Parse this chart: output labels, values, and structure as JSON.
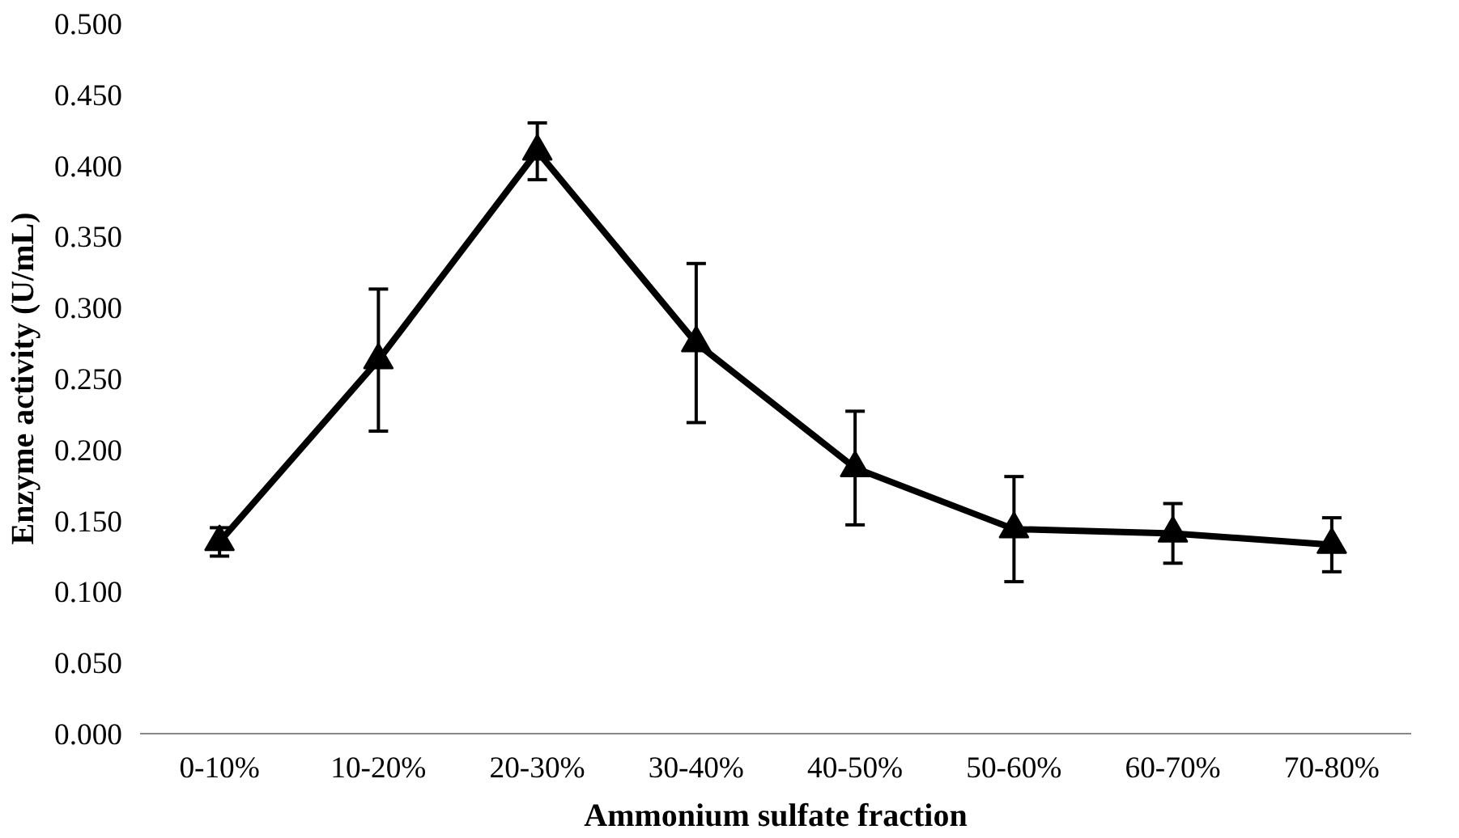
{
  "chart_data": {
    "type": "line",
    "xlabel": "Ammonium sulfate fraction",
    "ylabel": "Enzyme activity (U/mL)",
    "categories": [
      "0-10%",
      "10-20%",
      "20-30%",
      "30-40%",
      "40-50%",
      "50-60%",
      "60-70%",
      "70-80%"
    ],
    "series": [
      {
        "color": "#000000",
        "values": [
          0.135,
          0.263,
          0.41,
          0.275,
          0.187,
          0.144,
          0.141,
          0.133
        ],
        "errors": [
          0.01,
          0.05,
          0.02,
          0.056,
          0.04,
          0.037,
          0.021,
          0.019
        ]
      }
    ],
    "ylim": [
      0,
      0.5
    ],
    "yticks": [
      {
        "value": 0,
        "label": "0.000"
      },
      {
        "value": 0.05,
        "label": "0.050"
      },
      {
        "value": 0.1,
        "label": "0.100"
      },
      {
        "value": 0.15,
        "label": "0.150"
      },
      {
        "value": 0.2,
        "label": "0.200"
      },
      {
        "value": 0.25,
        "label": "0.250"
      },
      {
        "value": 0.3,
        "label": "0.300"
      },
      {
        "value": 0.35,
        "label": "0.350"
      },
      {
        "value": 0.4,
        "label": "0.400"
      },
      {
        "value": 0.45,
        "label": "0.450"
      },
      {
        "value": 0.5,
        "label": "0.500"
      }
    ],
    "marker": "triangle",
    "grid": false
  }
}
